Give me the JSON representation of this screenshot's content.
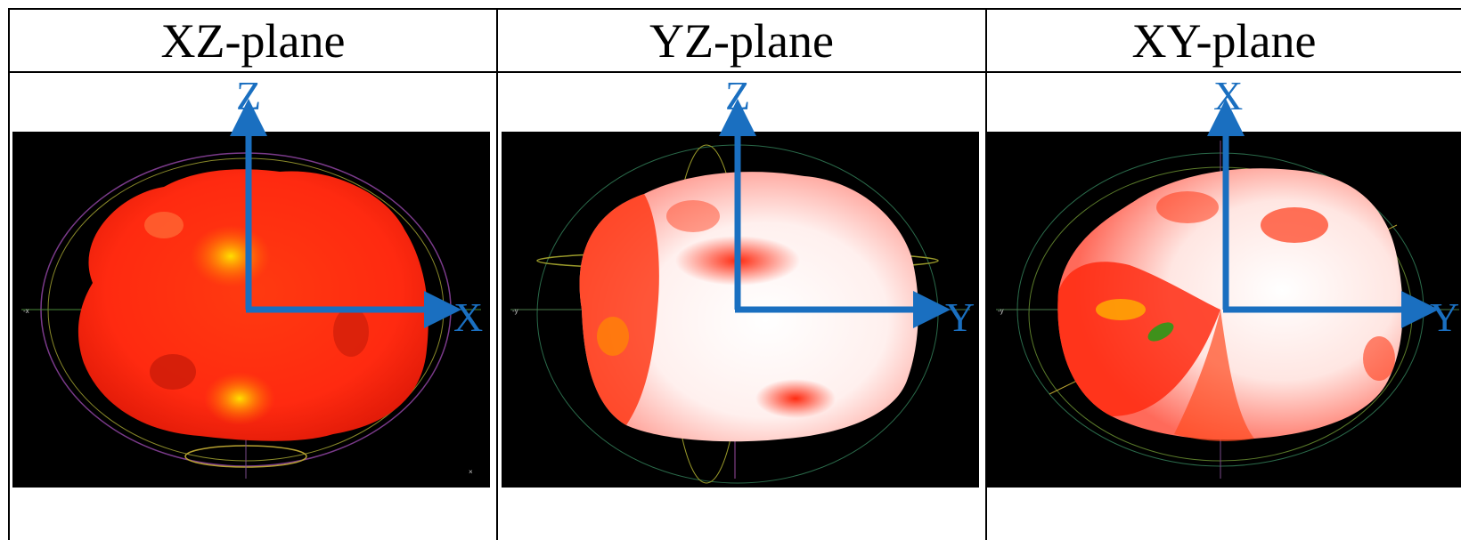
{
  "columns": [
    {
      "title": "XZ-plane",
      "vertical_axis": "Z",
      "horizontal_axis": "X"
    },
    {
      "title": "YZ-plane",
      "vertical_axis": "Z",
      "horizontal_axis": "Y"
    },
    {
      "title": "XY-plane",
      "vertical_axis": "X",
      "horizontal_axis": "Y"
    }
  ],
  "colors": {
    "axis_arrow": "#1a6fc0",
    "panel_background": "#000000",
    "shape_red": "#ff2a10",
    "shape_white": "#fff4f2",
    "highlight_yellow": "#ffd000"
  }
}
